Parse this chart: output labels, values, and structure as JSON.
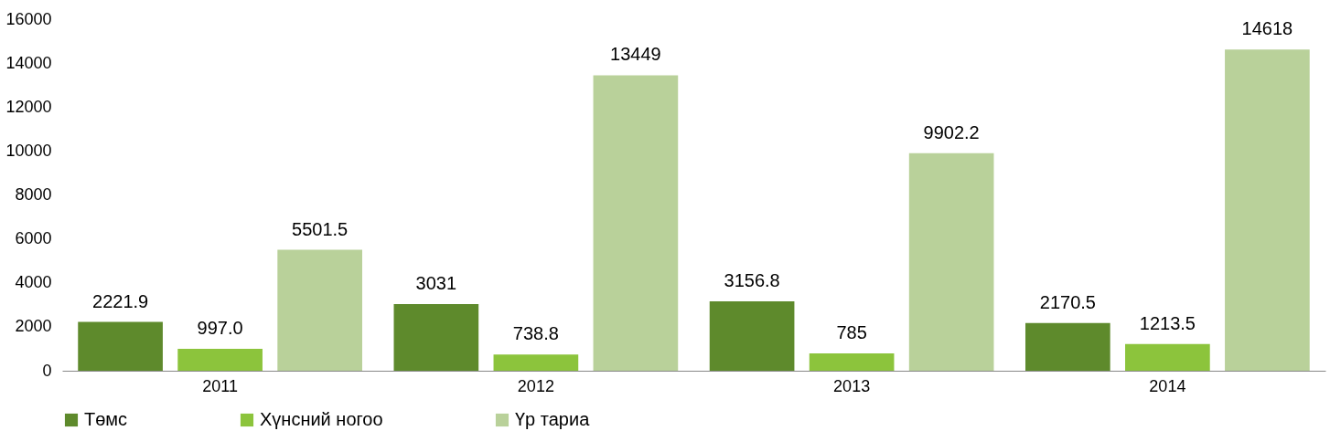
{
  "chart_data": {
    "type": "bar",
    "categories": [
      "2011",
      "2012",
      "2013",
      "2014"
    ],
    "series": [
      {
        "name": "Төмс",
        "color": "#5e8a2c",
        "values": [
          2221.9,
          3031,
          3156.8,
          2170.5
        ],
        "value_labels": [
          "2221.9",
          "3031",
          "3156.8",
          "2170.5"
        ]
      },
      {
        "name": "Хүнсний ногоо",
        "color": "#8cc43c",
        "values": [
          997.0,
          738.8,
          785,
          1213.5
        ],
        "value_labels": [
          "997.0",
          "738.8",
          "785",
          "1213.5"
        ]
      },
      {
        "name": "Үр тариа",
        "color": "#b9d19a",
        "values": [
          5501.5,
          13449,
          9902.2,
          14618
        ],
        "value_labels": [
          "5501.5",
          "13449",
          "9902.2",
          "14618"
        ]
      }
    ],
    "ylim": [
      0,
      16000
    ],
    "yticks": [
      0,
      2000,
      4000,
      6000,
      8000,
      10000,
      12000,
      14000,
      16000
    ],
    "grid": false,
    "legend": "bottom"
  }
}
